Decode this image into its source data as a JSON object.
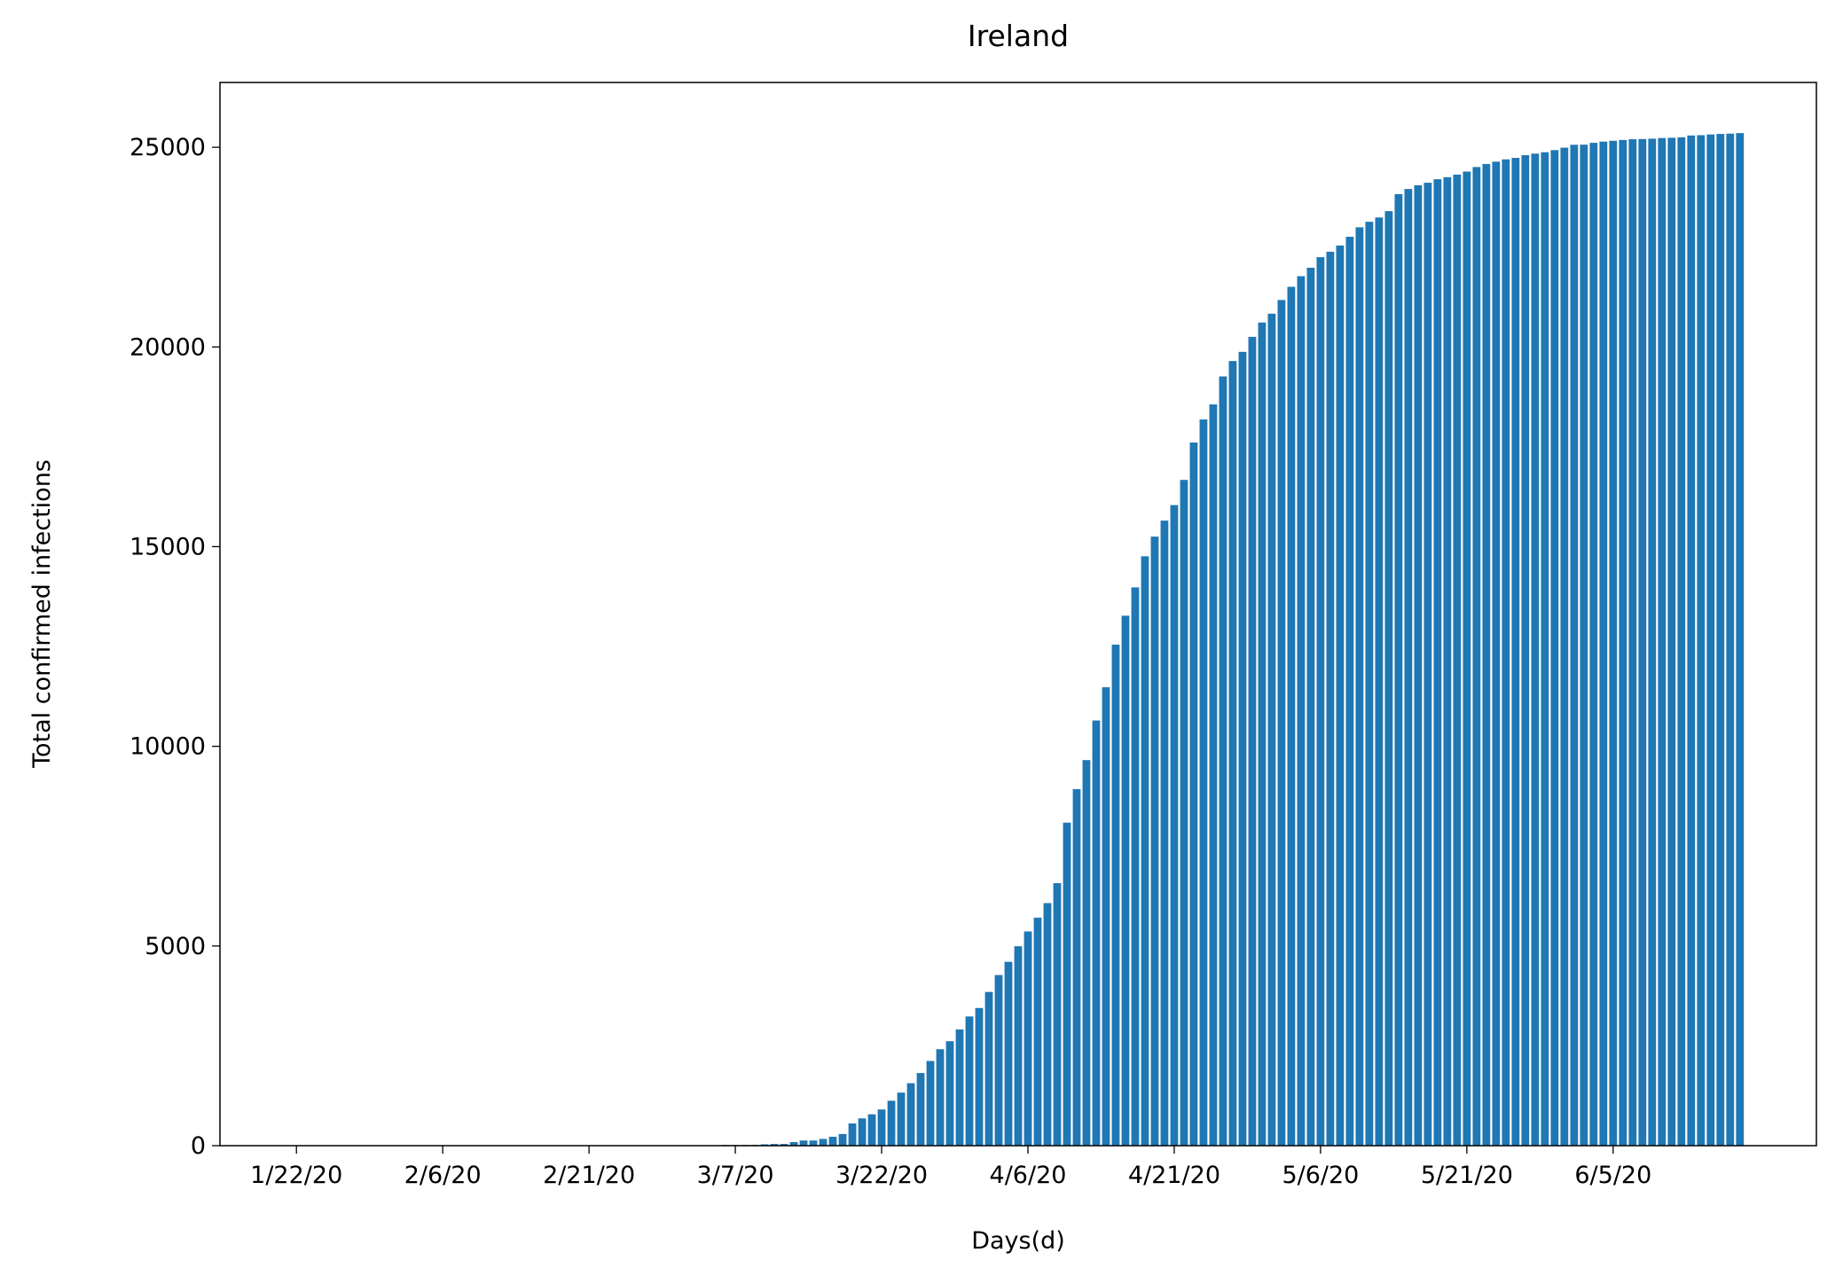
{
  "chart_data": {
    "type": "bar",
    "title": "Ireland",
    "x_label": "Days(d)",
    "y_label": "Total confirmed infections",
    "color": "#1f77b4",
    "categories": [
      "1/22/20",
      null,
      null,
      null,
      null,
      null,
      null,
      null,
      null,
      null,
      null,
      null,
      null,
      null,
      null,
      "2/6/20",
      null,
      null,
      null,
      null,
      null,
      null,
      null,
      null,
      null,
      null,
      null,
      null,
      null,
      null,
      "2/21/20",
      null,
      null,
      null,
      null,
      null,
      null,
      null,
      null,
      null,
      null,
      null,
      null,
      null,
      null,
      "3/7/20",
      null,
      null,
      null,
      null,
      null,
      null,
      null,
      null,
      null,
      null,
      null,
      null,
      null,
      null,
      "3/22/20",
      null,
      null,
      null,
      null,
      null,
      null,
      null,
      null,
      null,
      null,
      null,
      null,
      null,
      null,
      "4/6/20",
      null,
      null,
      null,
      null,
      null,
      null,
      null,
      null,
      null,
      null,
      null,
      null,
      null,
      null,
      "4/21/20",
      null,
      null,
      null,
      null,
      null,
      null,
      null,
      null,
      null,
      null,
      null,
      null,
      null,
      null,
      "5/6/20",
      null,
      null,
      null,
      null,
      null,
      null,
      null,
      null,
      null,
      null,
      null,
      null,
      null,
      null,
      "5/21/20",
      null,
      null,
      null,
      null,
      null,
      null,
      null,
      null,
      null,
      null,
      null,
      null,
      null,
      null,
      "6/5/20",
      null,
      null,
      null,
      null,
      null,
      null,
      null,
      null,
      null,
      null,
      null,
      null,
      null
    ],
    "values": [
      0,
      0,
      0,
      0,
      0,
      0,
      0,
      0,
      0,
      0,
      0,
      0,
      0,
      0,
      0,
      0,
      0,
      0,
      0,
      0,
      0,
      0,
      0,
      0,
      0,
      0,
      0,
      0,
      0,
      0,
      0,
      0,
      0,
      0,
      0,
      0,
      0,
      0,
      1,
      1,
      1,
      2,
      6,
      6,
      18,
      18,
      19,
      21,
      34,
      43,
      43,
      90,
      129,
      129,
      169,
      223,
      292,
      557,
      683,
      785,
      906,
      1125,
      1329,
      1564,
      1819,
      2121,
      2415,
      2615,
      2910,
      3235,
      3447,
      3849,
      4273,
      4604,
      4994,
      5364,
      5709,
      6074,
      6574,
      8089,
      8928,
      9655,
      10647,
      11479,
      12547,
      13271,
      13980,
      14758,
      15251,
      15652,
      16040,
      16671,
      17607,
      18184,
      18561,
      19262,
      19648,
      19877,
      20253,
      20612,
      20833,
      21176,
      21506,
      21772,
      21983,
      22248,
      22385,
      22541,
      22760,
      22996,
      23135,
      23242,
      23401,
      23827,
      23956,
      24048,
      24112,
      24200,
      24251,
      24315,
      24391,
      24506,
      24582,
      24639,
      24698,
      24735,
      24803,
      24841,
      24876,
      24929,
      24990,
      25062,
      25066,
      25111,
      25142,
      25163,
      25183,
      25201,
      25207,
      25215,
      25231,
      25238,
      25250,
      25295,
      25303,
      25321,
      25334,
      25341,
      25355
    ],
    "ylim": [
      0,
      26623
    ],
    "yticks": [
      0,
      5000,
      10000,
      15000,
      20000,
      25000
    ]
  }
}
